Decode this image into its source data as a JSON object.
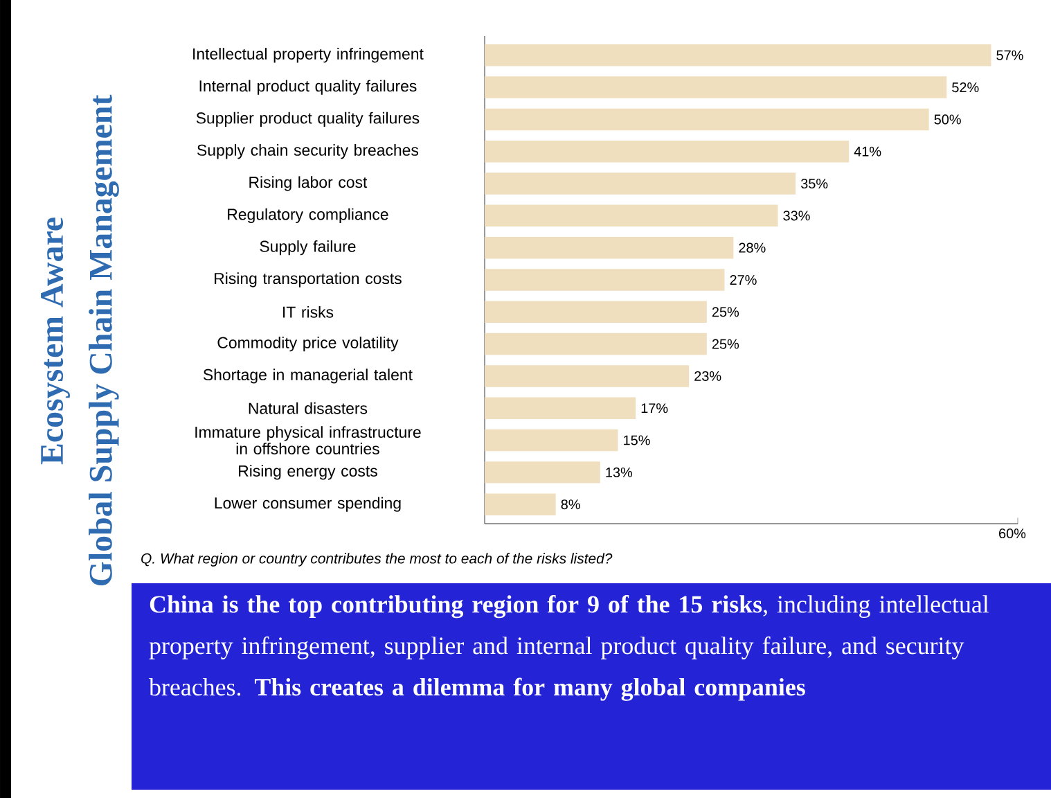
{
  "chart_data": {
    "type": "bar",
    "orientation": "horizontal",
    "categories": [
      "Intellectual property infringement",
      "Internal product quality failures",
      "Supplier product quality failures",
      "Supply chain security breaches",
      "Rising labor cost",
      "Regulatory compliance",
      "Supply failure",
      "Rising transportation costs",
      "IT risks",
      "Commodity price volatility",
      "Shortage in managerial talent",
      "Natural disasters",
      "Immature physical infrastructure in offshore countries",
      "Rising energy costs",
      "Lower consumer spending"
    ],
    "values": [
      57,
      52,
      50,
      41,
      35,
      33,
      28,
      27,
      25,
      25,
      23,
      17,
      15,
      13,
      8
    ],
    "value_labels": [
      "57%",
      "52%",
      "50%",
      "41%",
      "35%",
      "33%",
      "28%",
      "27%",
      "25%",
      "25%",
      "23%",
      "17%",
      "15%",
      "13%",
      "8%"
    ],
    "color": "#f0dfbf",
    "xlim": [
      0,
      60
    ],
    "xticks": [
      {
        "value": 60,
        "label": "60%"
      }
    ],
    "grid": false,
    "annotations": [
      "Ecosystem Aware",
      "Global Supply Chain Management",
      "Q. What region or country contributes the most to each of the risks listed?",
      "**China is the top contributing region for 9 of the 15 risks**, including intellectual property infringement, supplier and internal product quality failure, and security breaches. **This creates a dilemma for many global companies**"
    ]
  }
}
